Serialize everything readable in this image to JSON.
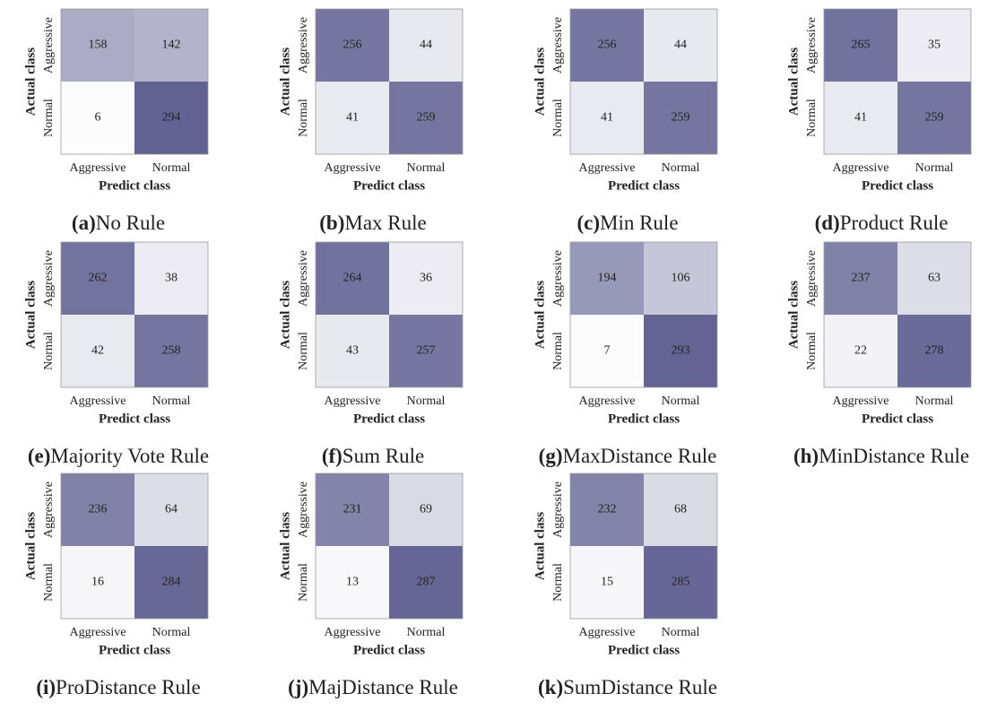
{
  "chart_data": [
    {
      "type": "heatmap",
      "panel": "(a)",
      "title": "No Rule",
      "x_categories": [
        "Aggressive",
        "Normal"
      ],
      "y_categories": [
        "Aggressive",
        "Normal"
      ],
      "xlabel": "Predict class",
      "ylabel": "Actual class",
      "values": [
        [
          158,
          142
        ],
        [
          6,
          294
        ]
      ]
    },
    {
      "type": "heatmap",
      "panel": "(b)",
      "title": "Max Rule",
      "x_categories": [
        "Aggressive",
        "Normal"
      ],
      "y_categories": [
        "Aggressive",
        "Normal"
      ],
      "xlabel": "Predict class",
      "ylabel": "Actual class",
      "values": [
        [
          256,
          44
        ],
        [
          41,
          259
        ]
      ]
    },
    {
      "type": "heatmap",
      "panel": "(c)",
      "title": "Min Rule",
      "x_categories": [
        "Aggressive",
        "Normal"
      ],
      "y_categories": [
        "Aggressive",
        "Normal"
      ],
      "xlabel": "Predict class",
      "ylabel": "Actual class",
      "values": [
        [
          256,
          44
        ],
        [
          41,
          259
        ]
      ]
    },
    {
      "type": "heatmap",
      "panel": "(d)",
      "title": "Product Rule",
      "x_categories": [
        "Aggressive",
        "Normal"
      ],
      "y_categories": [
        "Aggressive",
        "Normal"
      ],
      "xlabel": "Predict class",
      "ylabel": "Actual class",
      "values": [
        [
          265,
          35
        ],
        [
          41,
          259
        ]
      ]
    },
    {
      "type": "heatmap",
      "panel": "(e)",
      "title": "Majority Vote Rule",
      "x_categories": [
        "Aggressive",
        "Normal"
      ],
      "y_categories": [
        "Aggressive",
        "Normal"
      ],
      "xlabel": "Predict class",
      "ylabel": "Actual class",
      "values": [
        [
          262,
          38
        ],
        [
          42,
          258
        ]
      ]
    },
    {
      "type": "heatmap",
      "panel": "(f)",
      "title": "Sum Rule",
      "x_categories": [
        "Aggressive",
        "Normal"
      ],
      "y_categories": [
        "Aggressive",
        "Normal"
      ],
      "xlabel": "Predict class",
      "ylabel": "Actual class",
      "values": [
        [
          264,
          36
        ],
        [
          43,
          257
        ]
      ]
    },
    {
      "type": "heatmap",
      "panel": "(g)",
      "title": "MaxDistance Rule",
      "x_categories": [
        "Aggressive",
        "Normal"
      ],
      "y_categories": [
        "Aggressive",
        "Normal"
      ],
      "xlabel": "Predict class",
      "ylabel": "Actual class",
      "values": [
        [
          194,
          106
        ],
        [
          7,
          293
        ]
      ]
    },
    {
      "type": "heatmap",
      "panel": "(h)",
      "title": "MinDistance Rule",
      "x_categories": [
        "Aggressive",
        "Normal"
      ],
      "y_categories": [
        "Aggressive",
        "Normal"
      ],
      "xlabel": "Predict class",
      "ylabel": "Actual class",
      "values": [
        [
          237,
          63
        ],
        [
          22,
          278
        ]
      ]
    },
    {
      "type": "heatmap",
      "panel": "(i)",
      "title": "ProDistance Rule",
      "x_categories": [
        "Aggressive",
        "Normal"
      ],
      "y_categories": [
        "Aggressive",
        "Normal"
      ],
      "xlabel": "Predict class",
      "ylabel": "Actual class",
      "values": [
        [
          236,
          64
        ],
        [
          16,
          284
        ]
      ]
    },
    {
      "type": "heatmap",
      "panel": "(j)",
      "title": "MajDistance Rule",
      "x_categories": [
        "Aggressive",
        "Normal"
      ],
      "y_categories": [
        "Aggressive",
        "Normal"
      ],
      "xlabel": "Predict class",
      "ylabel": "Actual class",
      "values": [
        [
          231,
          69
        ],
        [
          13,
          287
        ]
      ]
    },
    {
      "type": "heatmap",
      "panel": "(k)",
      "title": "SumDistance Rule",
      "x_categories": [
        "Aggressive",
        "Normal"
      ],
      "y_categories": [
        "Aggressive",
        "Normal"
      ],
      "xlabel": "Predict class",
      "ylabel": "Actual class",
      "values": [
        [
          232,
          68
        ],
        [
          15,
          285
        ]
      ]
    }
  ]
}
